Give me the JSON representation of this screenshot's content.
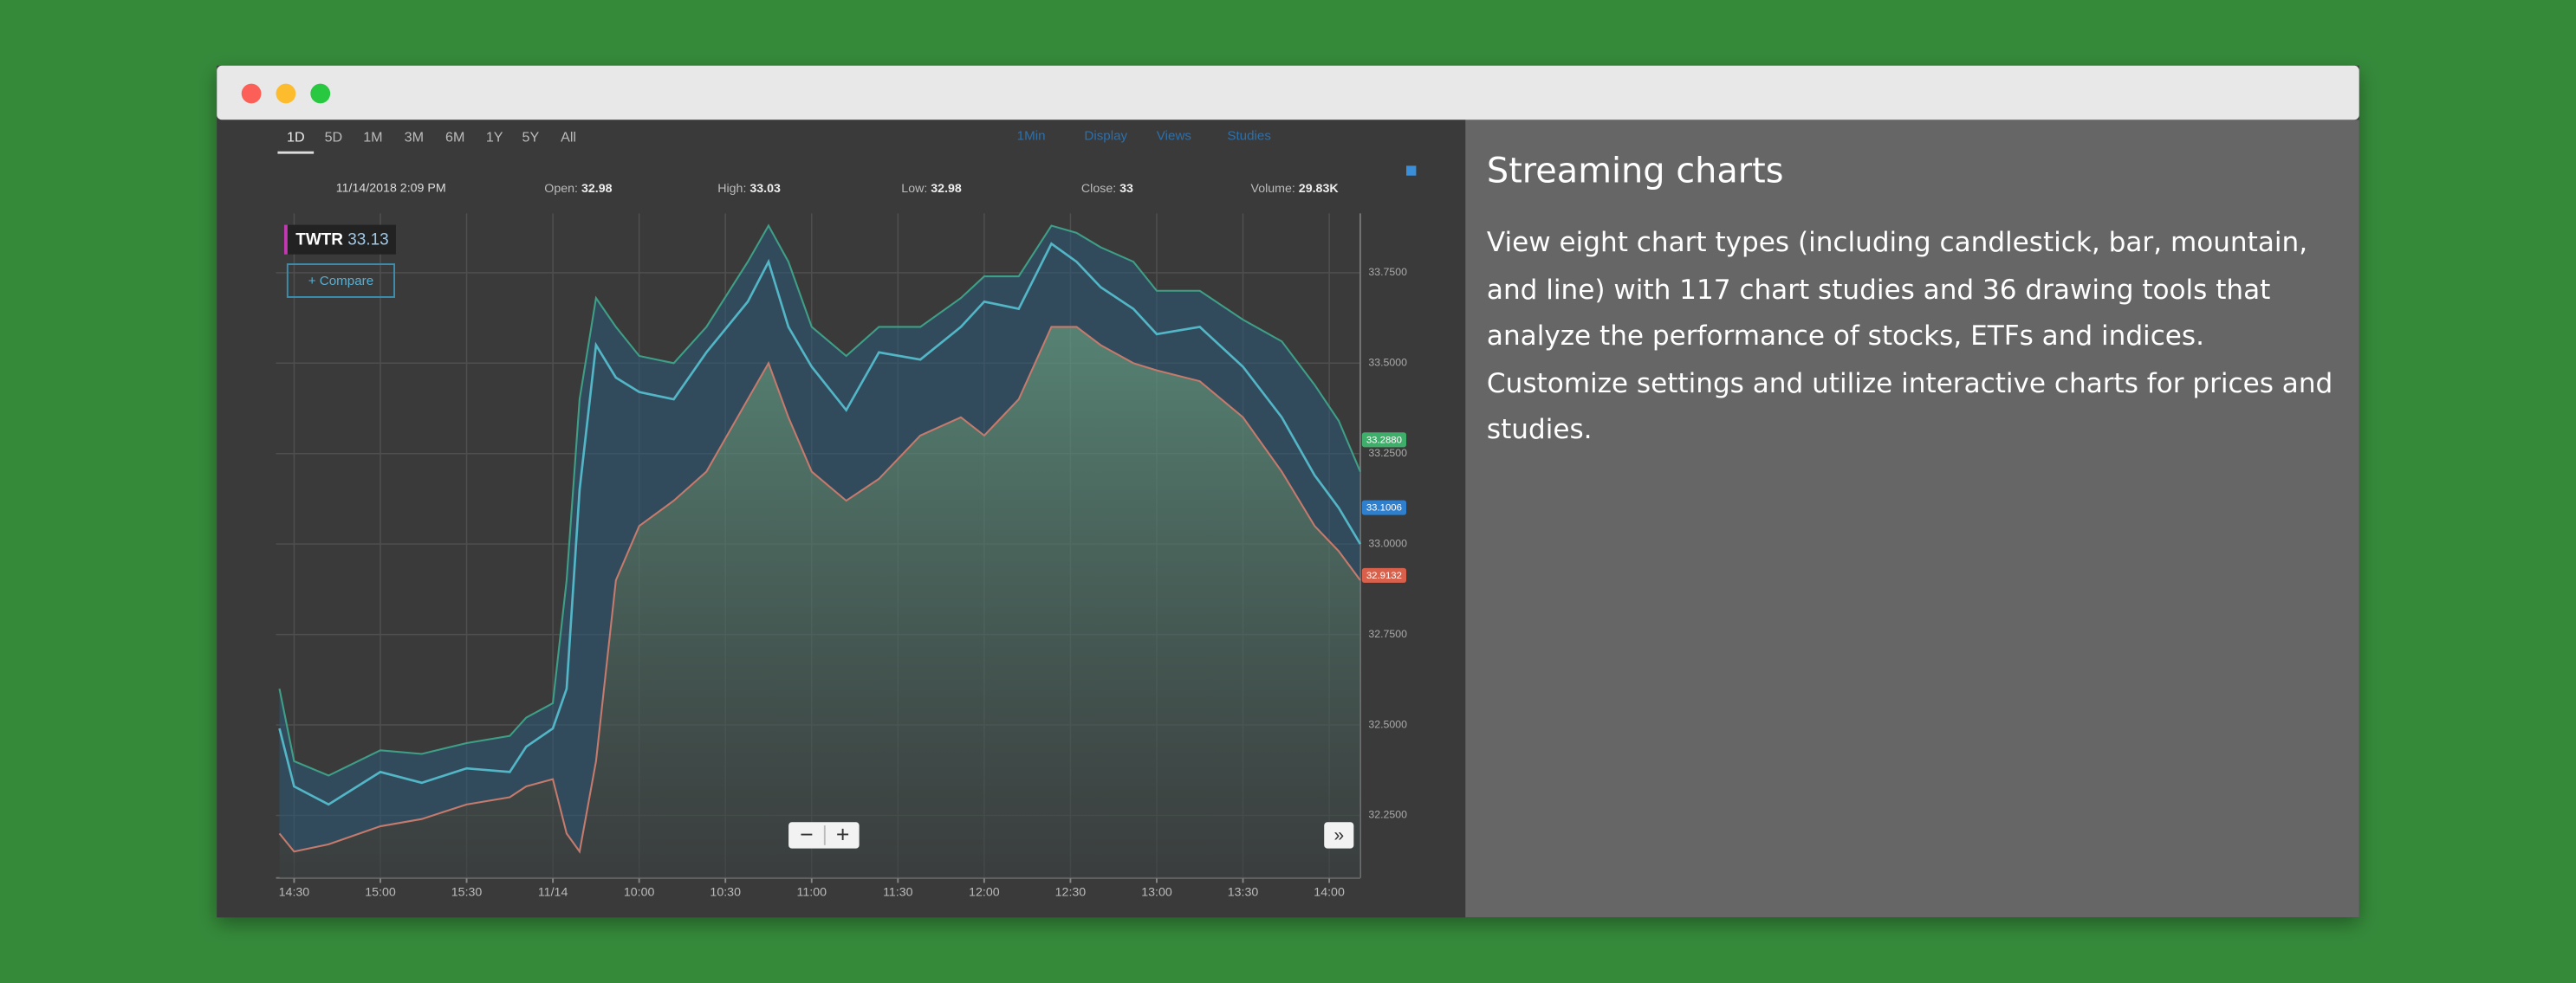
{
  "timeframes": [
    "1D",
    "5D",
    "1M",
    "3M",
    "6M",
    "1Y",
    "5Y",
    "All"
  ],
  "toolbar": [
    "1Min",
    "Display",
    "Views",
    "Studies"
  ],
  "quote_header": {
    "datetime": "11/14/2018 2:09 PM",
    "fields": [
      {
        "label": "Open:",
        "value": 32.98
      },
      {
        "label": "High:",
        "value": 33.03
      },
      {
        "label": "Low:",
        "value": 32.98
      },
      {
        "label": "Close:",
        "value": 33.0
      },
      {
        "label": "Volume:",
        "value": "29.83K"
      }
    ]
  },
  "symbol": {
    "name": "TWTR",
    "price": 33.13
  },
  "compare_button": "+ Compare",
  "chart_data": {
    "type": "line",
    "x": [
      -0.17,
      0,
      0.4,
      1.0,
      1.48,
      2.0,
      2.5,
      2.69,
      3.0,
      3.16,
      3.31,
      3.5,
      3.73,
      4.0,
      4.4,
      4.78,
      5.26,
      5.5,
      5.73,
      6.0,
      6.4,
      6.78,
      7.26,
      7.73,
      8.0,
      8.4,
      8.78,
      9.07,
      9.35,
      9.73,
      10.0,
      10.5,
      11.0,
      11.45,
      11.83,
      12.11,
      12.36
    ],
    "series": [
      {
        "color": "#3f9f86",
        "values": [
          32.6,
          32.4,
          32.36,
          32.43,
          32.42,
          32.45,
          32.47,
          32.52,
          32.56,
          32.9,
          33.4,
          33.68,
          33.6,
          33.52,
          33.5,
          33.6,
          33.78,
          33.88,
          33.78,
          33.6,
          33.52,
          33.6,
          33.6,
          33.68,
          33.74,
          33.74,
          33.88,
          33.86,
          33.82,
          33.78,
          33.7,
          33.7,
          33.62,
          33.56,
          33.44,
          33.34,
          33.2
        ]
      },
      {
        "color": "#52b6c6",
        "values": [
          32.49,
          32.33,
          32.28,
          32.37,
          32.34,
          32.38,
          32.37,
          32.44,
          32.49,
          32.6,
          33.15,
          33.55,
          33.46,
          33.42,
          33.4,
          33.53,
          33.67,
          33.78,
          33.6,
          33.49,
          33.37,
          33.53,
          33.51,
          33.6,
          33.67,
          33.65,
          33.83,
          33.78,
          33.71,
          33.65,
          33.58,
          33.6,
          33.49,
          33.35,
          33.19,
          33.1,
          33.0
        ]
      },
      {
        "color": "#c47a6c",
        "values": [
          32.2,
          32.15,
          32.17,
          32.22,
          32.24,
          32.28,
          32.3,
          32.33,
          32.35,
          32.2,
          32.15,
          32.4,
          32.9,
          33.05,
          33.12,
          33.2,
          33.4,
          33.5,
          33.35,
          33.2,
          33.12,
          33.18,
          33.3,
          33.35,
          33.3,
          33.4,
          33.6,
          33.6,
          33.55,
          33.5,
          33.48,
          33.45,
          33.35,
          33.2,
          33.05,
          32.98,
          32.9
        ]
      }
    ],
    "xlim": [
      -0.21,
      12.36
    ],
    "xticks": [
      {
        "value": 0,
        "label": "14:30"
      },
      {
        "value": 1,
        "label": "15:00"
      },
      {
        "value": 2,
        "label": "15:30"
      },
      {
        "value": 3,
        "label": "11/14"
      },
      {
        "value": 4,
        "label": "10:00"
      },
      {
        "value": 5,
        "label": "10:30"
      },
      {
        "value": 6,
        "label": "11:00"
      },
      {
        "value": 7,
        "label": "11:30"
      },
      {
        "value": 8,
        "label": "12:00"
      },
      {
        "value": 9,
        "label": "12:30"
      },
      {
        "value": 10,
        "label": "13:00"
      },
      {
        "value": 11,
        "label": "13:30"
      },
      {
        "value": 12,
        "label": "14:00"
      }
    ],
    "ylim": [
      32.077,
      33.914
    ],
    "yticks": [
      {
        "value": 32.25,
        "label": "32.2500"
      },
      {
        "value": 32.5,
        "label": "32.5000"
      },
      {
        "value": 32.75,
        "label": "32.7500"
      },
      {
        "value": 33,
        "label": "33.0000"
      },
      {
        "value": 33.25,
        "label": "33.2500"
      },
      {
        "value": 33.5,
        "label": "33.5000"
      },
      {
        "value": 33.75,
        "label": "33.7500"
      }
    ],
    "grid": true,
    "price_labels": [
      {
        "value": 33.288,
        "label": "33.2880",
        "color": "#3fae6a"
      },
      {
        "value": 33.1006,
        "label": "33.1006",
        "color": "#2f7fcf"
      },
      {
        "value": 32.9132,
        "label": "32.9132",
        "color": "#d9604a"
      }
    ]
  },
  "panel": {
    "title": "Streaming charts",
    "text": "View eight chart types (including candlestick, bar, mountain, and line) with 117 chart studies and 36 drawing tools that analyze the performance of stocks, ETFs and indices. Customize settings and utilize interactive charts for prices and studies."
  }
}
